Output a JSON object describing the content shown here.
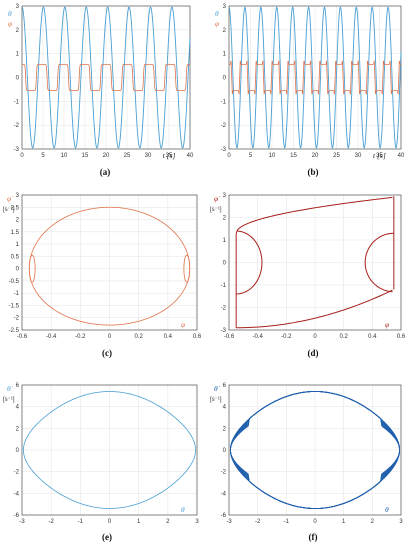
{
  "colors": {
    "theta": "#4a9fd4",
    "phi": "#e0734a",
    "phi_dark": "#a8201a",
    "theta_dark": "#1f5fad"
  },
  "chart_data": [
    {
      "id": "a",
      "caption": "(a)",
      "type": "line",
      "xlim": [
        0,
        40
      ],
      "ylim": [
        -3,
        3
      ],
      "grid": true,
      "xticks": [
        "0",
        "5",
        "10",
        "15",
        "20",
        "25",
        "30",
        "35",
        "40"
      ],
      "yticks": [
        "3",
        "2",
        "1",
        "0",
        "-1",
        "-2",
        "-3"
      ],
      "xlabel": "t [s]",
      "ylabel_theta": "θ",
      "ylabel_phi": "φ",
      "series": [
        {
          "name": "θ",
          "amplitude": 2.95,
          "period": 5.1,
          "shape": "sine",
          "color_key": "theta"
        },
        {
          "name": "φ",
          "amplitude": 0.55,
          "period": 5.1,
          "shape": "square",
          "color_key": "phi"
        }
      ]
    },
    {
      "id": "b",
      "caption": "(b)",
      "type": "line",
      "xlim": [
        0,
        40
      ],
      "ylim": [
        -3,
        3
      ],
      "grid": true,
      "xticks": [
        "0",
        "5",
        "10",
        "15",
        "20",
        "25",
        "30",
        "35",
        "40"
      ],
      "yticks": [
        "3",
        "2",
        "1",
        "0",
        "-1",
        "-2",
        "-3"
      ],
      "xlabel": "t [s]",
      "ylabel_theta": "θ",
      "ylabel_phi": "φ",
      "series": [
        {
          "name": "θ",
          "amplitude": 2.95,
          "period": 3.7,
          "shape": "sine",
          "color_key": "theta"
        },
        {
          "name": "φ",
          "amplitude": 0.55,
          "period": 3.7,
          "shape": "square-overshoot",
          "color_key": "phi"
        }
      ]
    },
    {
      "id": "c",
      "caption": "(c)",
      "type": "line",
      "xlim": [
        -0.6,
        0.6
      ],
      "ylim": [
        -2.5,
        3
      ],
      "grid": true,
      "xticks": [
        "-0.6",
        "-0.4",
        "-0.2",
        "0",
        "0.2",
        "0.4",
        "0.6"
      ],
      "yticks": [
        "3",
        "2.5",
        "2",
        "1.5",
        "1",
        "0.5",
        "0",
        "-0.5",
        "-1",
        "-1.5",
        "-2",
        "-2.5"
      ],
      "xlabel": "φ",
      "ylabel": "φ̇",
      "yunit": "[s⁻¹]",
      "series": [
        {
          "name": "phase",
          "shape": "lens",
          "color_key": "phi"
        }
      ]
    },
    {
      "id": "d",
      "caption": "(d)",
      "type": "line",
      "xlim": [
        -0.6,
        0.6
      ],
      "ylim": [
        -3,
        3
      ],
      "grid": true,
      "xticks": [
        "-0.6",
        "-0.4",
        "-0.2",
        "0",
        "0.2",
        "0.4",
        "0.6"
      ],
      "yticks": [
        "3",
        "2",
        "1",
        "0",
        "-1",
        "-2",
        "-3"
      ],
      "xlabel": "φ",
      "ylabel": "φ̇",
      "yunit": "[s⁻¹]",
      "series": [
        {
          "name": "phase",
          "shape": "box",
          "color_key": "phi_dark"
        }
      ]
    },
    {
      "id": "e",
      "caption": "(e)",
      "type": "line",
      "xlim": [
        -3,
        3
      ],
      "ylim": [
        -6,
        6
      ],
      "grid": true,
      "xticks": [
        "-3",
        "-2",
        "-1",
        "0",
        "1",
        "2",
        "3"
      ],
      "yticks": [
        "6",
        "4",
        "2",
        "0",
        "-2",
        "-4",
        "-6"
      ],
      "xlabel": "θ",
      "ylabel": "θ̇",
      "yunit": "[s⁻¹]",
      "series": [
        {
          "name": "phase",
          "shape": "eye",
          "amplitude": 5.4,
          "color_key": "theta"
        }
      ]
    },
    {
      "id": "f",
      "caption": "(f)",
      "type": "line",
      "xlim": [
        -3,
        3
      ],
      "ylim": [
        -6,
        6
      ],
      "grid": true,
      "xticks": [
        "-3",
        "-2",
        "-1",
        "0",
        "1",
        "2",
        "3"
      ],
      "yticks": [
        "6",
        "4",
        "2",
        "0",
        "-2",
        "-4",
        "-6"
      ],
      "xlabel": "θ",
      "ylabel": "θ̇",
      "yunit": "[s⁻¹]",
      "series": [
        {
          "name": "phase",
          "shape": "eye-multi",
          "amplitude": 5.4,
          "color_key": "theta_dark"
        }
      ]
    }
  ]
}
